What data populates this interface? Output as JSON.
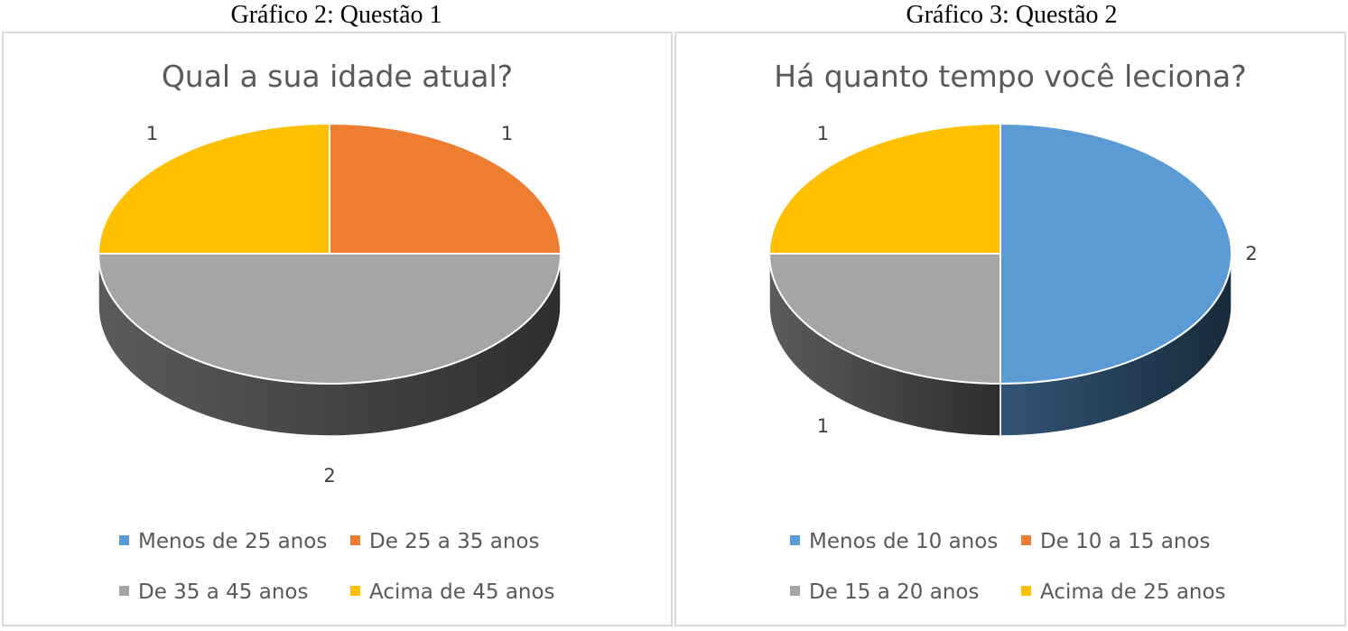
{
  "captions": [
    "Gráfico 2: Questão 1",
    "Gráfico 3: Questão 2"
  ],
  "chart_data": [
    {
      "type": "pie",
      "title": "Qual a sua idade atual?",
      "categories": [
        "Menos de 25 anos",
        "De 25 a 35 anos",
        "De 35 a 45 anos",
        "Acima de 45 anos"
      ],
      "values": [
        0,
        1,
        2,
        1
      ],
      "colors": [
        "#5b9bd5",
        "#ed7d31",
        "#a5a5a5",
        "#ffc000"
      ],
      "data_labels": [
        "",
        "1",
        "2",
        "1"
      ],
      "legend": "bottom",
      "style": "3d-pie"
    },
    {
      "type": "pie",
      "title": "Há quanto tempo você leciona?",
      "categories": [
        "Menos de 10 anos",
        "De 10 a 15 anos",
        "De 15 a 20 anos",
        "Acima de 25 anos"
      ],
      "values": [
        2,
        0,
        1,
        1
      ],
      "colors": [
        "#5b9bd5",
        "#ed7d31",
        "#a5a5a5",
        "#ffc000"
      ],
      "data_labels": [
        "2",
        "",
        "1",
        "1"
      ],
      "legend": "bottom",
      "style": "3d-pie"
    }
  ]
}
